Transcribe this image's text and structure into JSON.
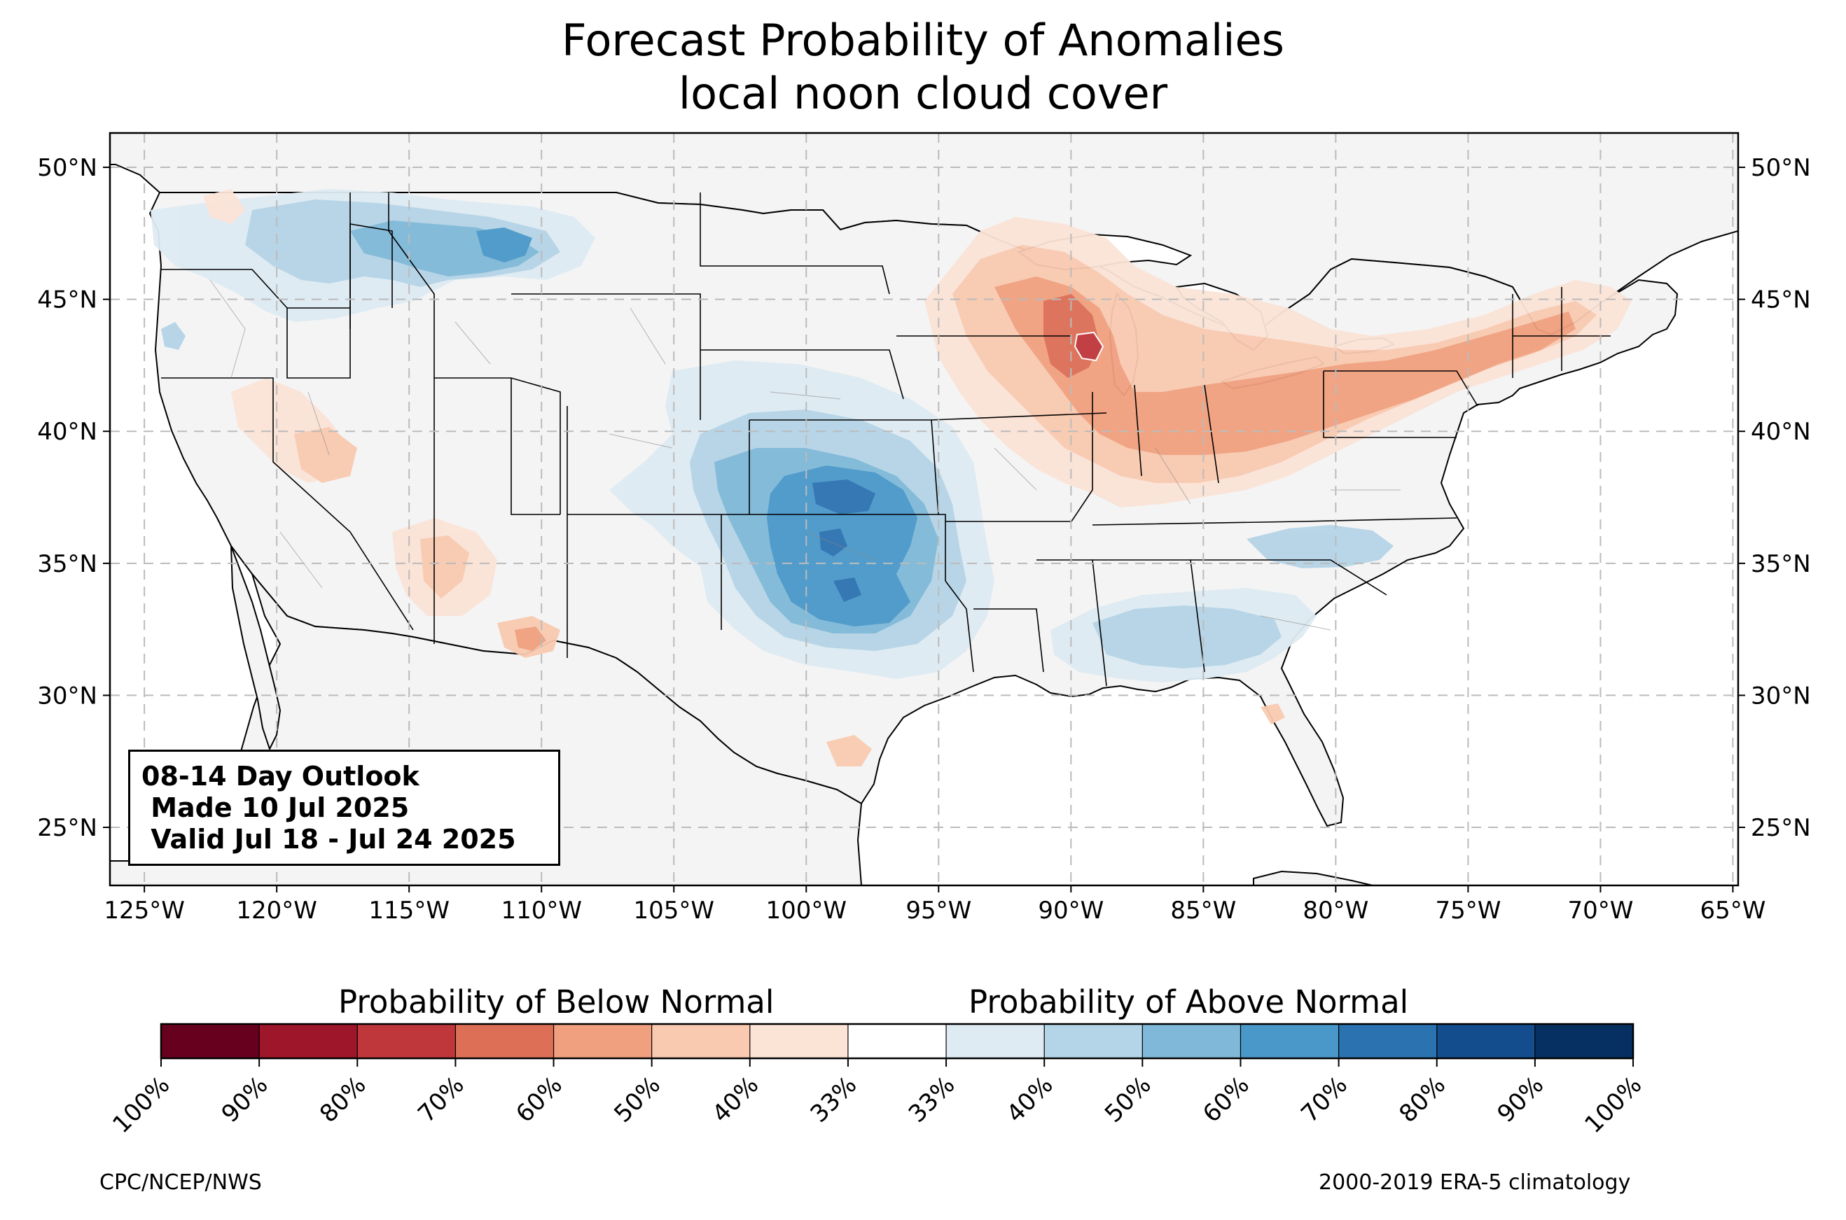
{
  "title": {
    "line1": "Forecast Probability of Anomalies",
    "line2": "local noon cloud cover"
  },
  "map": {
    "lat_labels": [
      "50°N",
      "45°N",
      "40°N",
      "35°N",
      "30°N",
      "25°N"
    ],
    "lat_values": [
      50,
      45,
      40,
      35,
      30,
      25
    ],
    "lon_labels": [
      "125°W",
      "120°W",
      "115°W",
      "110°W",
      "105°W",
      "100°W",
      "95°W",
      "90°W",
      "85°W",
      "80°W",
      "75°W",
      "70°W",
      "65°W"
    ],
    "lon_values": [
      -125,
      -120,
      -115,
      -110,
      -105,
      -100,
      -95,
      -90,
      -85,
      -80,
      -75,
      -70,
      -65
    ],
    "extent": {
      "lon": [
        -126.3,
        -64.8
      ],
      "lat": [
        22.8,
        51.3
      ]
    },
    "land_color": "#f4f4f4",
    "grid": "dashed"
  },
  "outlook": {
    "line1": "08-14 Day Outlook",
    "line2": " Made 10 Jul 2025",
    "line3": " Valid Jul 18 - Jul 24 2025"
  },
  "colorbar": {
    "below_label": "Probability of Below Normal",
    "above_label": "Probability of Above Normal",
    "tick_labels": [
      "100%",
      "90%",
      "80%",
      "70%",
      "60%",
      "50%",
      "40%",
      "33%",
      "33%",
      "40%",
      "50%",
      "60%",
      "70%",
      "80%",
      "90%",
      "100%"
    ],
    "colors": [
      "#67001f",
      "#9e1629",
      "#c0373b",
      "#dc6f56",
      "#f0a07f",
      "#f9c9b0",
      "#fbe3d6",
      "#ffffff",
      "#deebf2",
      "#b4d4e7",
      "#7fb8d8",
      "#4a98c9",
      "#2b72b0",
      "#144d8d",
      "#053061"
    ]
  },
  "footer": {
    "left": "CPC/NCEP/NWS",
    "right": "2000-2019 ERA-5 climatology"
  }
}
